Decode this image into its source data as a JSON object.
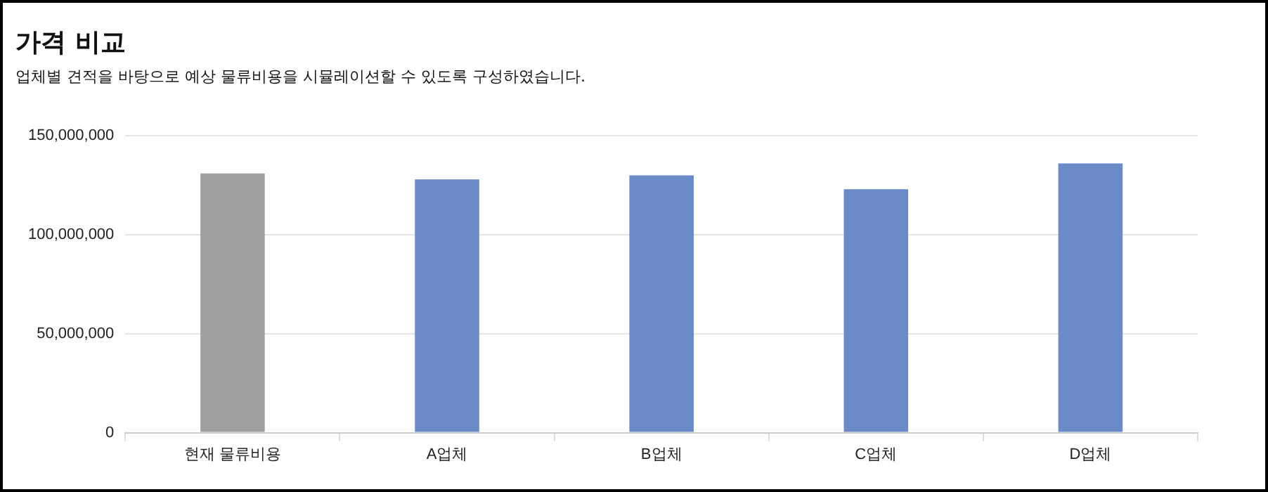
{
  "chart_data": {
    "type": "bar",
    "title": "가격 비교",
    "subtitle": "업체별 견적을 바탕으로 예상 물류비용을 시뮬레이션할 수 있도록 구성하였습니다.",
    "categories": [
      "현재 물류비용",
      "A업체",
      "B업체",
      "C업체",
      "D업체"
    ],
    "values": [
      131000000,
      128000000,
      130000000,
      123000000,
      136000000
    ],
    "colors": [
      "#a0a0a0",
      "#6a8ac8",
      "#6a8ac8",
      "#6a8ac8",
      "#6a8ac8"
    ],
    "ylim": [
      0,
      150000000
    ],
    "yticks": [
      {
        "value": 0,
        "label": "0"
      },
      {
        "value": 50000000,
        "label": "50,000,000"
      },
      {
        "value": 100000000,
        "label": "100,000,000"
      },
      {
        "value": 150000000,
        "label": "150,000,000"
      }
    ],
    "grid": "y",
    "legend": false
  }
}
